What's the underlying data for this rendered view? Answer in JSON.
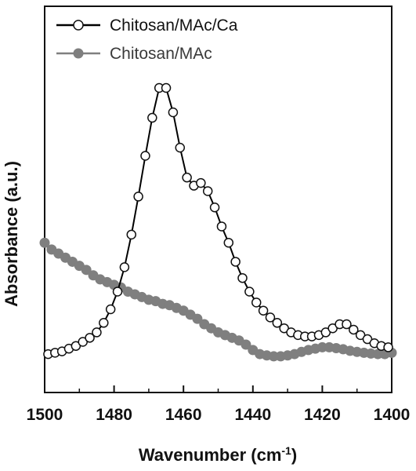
{
  "chart_data": {
    "type": "scatter",
    "title": "",
    "xlabel": "Wavenumber (cm",
    "xlabel_sup": "-1",
    "xlabel_close": ")",
    "ylabel": "Absorbance (a.u.)",
    "xlim": [
      1500,
      1400
    ],
    "x_reversed": true,
    "x_ticks": [
      "1500",
      "1480",
      "1460",
      "1440",
      "1420",
      "1400"
    ],
    "y_ticks_labels": "none",
    "grid": false,
    "legend_position": "top-left",
    "series": [
      {
        "name": "Chitosan/MAc/Ca",
        "marker": "open-circle-line",
        "color": "#000000",
        "x": [
          1499,
          1497,
          1495,
          1493,
          1491,
          1489,
          1487,
          1485,
          1483,
          1481,
          1479,
          1477,
          1475,
          1473,
          1471,
          1469,
          1467,
          1465,
          1463,
          1461,
          1459,
          1457,
          1455,
          1453,
          1451,
          1449,
          1447,
          1445,
          1443,
          1441,
          1439,
          1437,
          1435,
          1433,
          1431,
          1429,
          1427,
          1425,
          1423,
          1421,
          1419,
          1417,
          1415,
          1413,
          1411,
          1409,
          1407,
          1405,
          1403,
          1401
        ],
        "y": [
          0.02,
          0.025,
          0.03,
          0.04,
          0.05,
          0.065,
          0.08,
          0.1,
          0.135,
          0.185,
          0.25,
          0.34,
          0.46,
          0.6,
          0.75,
          0.89,
          1.0,
          1.0,
          0.91,
          0.78,
          0.67,
          0.64,
          0.65,
          0.62,
          0.56,
          0.49,
          0.43,
          0.36,
          0.3,
          0.25,
          0.21,
          0.18,
          0.155,
          0.135,
          0.115,
          0.1,
          0.09,
          0.085,
          0.085,
          0.09,
          0.1,
          0.115,
          0.13,
          0.13,
          0.11,
          0.09,
          0.075,
          0.06,
          0.05,
          0.045
        ]
      },
      {
        "name": "Chitosan/MAc",
        "marker": "filled-circle-line",
        "color": "#7f7f7f",
        "x": [
          1500,
          1498,
          1496,
          1494,
          1492,
          1490,
          1488,
          1486,
          1484,
          1482,
          1480,
          1478,
          1476,
          1474,
          1472,
          1470,
          1468,
          1466,
          1464,
          1462,
          1460,
          1458,
          1456,
          1454,
          1452,
          1450,
          1448,
          1446,
          1444,
          1442,
          1440,
          1438,
          1436,
          1434,
          1432,
          1430,
          1428,
          1426,
          1424,
          1422,
          1420,
          1418,
          1416,
          1414,
          1412,
          1410,
          1408,
          1406,
          1404,
          1402,
          1400
        ],
        "y": [
          0.43,
          0.405,
          0.39,
          0.375,
          0.36,
          0.345,
          0.33,
          0.31,
          0.295,
          0.285,
          0.275,
          0.265,
          0.25,
          0.24,
          0.23,
          0.22,
          0.215,
          0.205,
          0.2,
          0.19,
          0.18,
          0.165,
          0.15,
          0.13,
          0.115,
          0.1,
          0.09,
          0.08,
          0.07,
          0.055,
          0.035,
          0.02,
          0.015,
          0.012,
          0.012,
          0.015,
          0.02,
          0.028,
          0.035,
          0.04,
          0.045,
          0.045,
          0.042,
          0.038,
          0.032,
          0.028,
          0.025,
          0.022,
          0.02,
          0.02,
          0.025
        ]
      }
    ]
  }
}
